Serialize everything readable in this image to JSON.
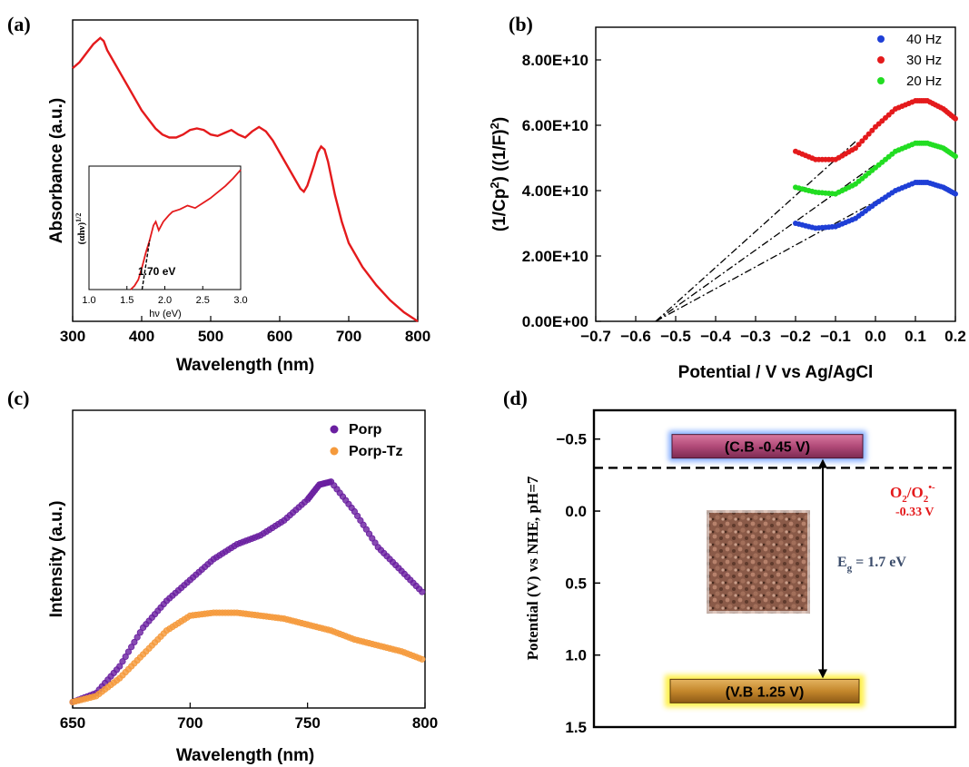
{
  "colors": {
    "red": "#e41a1c",
    "blue": "#1f3fd6",
    "green": "#22dd22",
    "purple": "#6a1fa0",
    "orange": "#f59a3c",
    "navy": "#3b4c6b",
    "cb_fill": "#b14a78",
    "vb_fill": "#c4872c"
  },
  "chart_data": [
    {
      "panel": "(a)",
      "type": "line",
      "xlabel": "Wavelength (nm)",
      "ylabel": "Absorbance (a.u.)",
      "xlim": [
        300,
        800
      ],
      "xticks": [
        "300",
        "400",
        "500",
        "600",
        "700",
        "800"
      ],
      "series": [
        {
          "x": [
            300,
            310,
            320,
            330,
            340,
            345,
            350,
            360,
            370,
            380,
            390,
            400,
            410,
            420,
            430,
            440,
            450,
            460,
            470,
            480,
            490,
            500,
            510,
            520,
            530,
            540,
            550,
            560,
            570,
            580,
            590,
            600,
            610,
            620,
            630,
            635,
            640,
            650,
            655,
            660,
            665,
            670,
            680,
            690,
            700,
            720,
            740,
            760,
            780,
            800
          ],
          "y": [
            0.84,
            0.86,
            0.89,
            0.92,
            0.94,
            0.93,
            0.9,
            0.86,
            0.82,
            0.78,
            0.74,
            0.7,
            0.67,
            0.64,
            0.62,
            0.61,
            0.61,
            0.62,
            0.635,
            0.64,
            0.635,
            0.62,
            0.615,
            0.625,
            0.635,
            0.62,
            0.61,
            0.63,
            0.645,
            0.63,
            0.6,
            0.56,
            0.52,
            0.48,
            0.44,
            0.43,
            0.45,
            0.52,
            0.56,
            0.58,
            0.57,
            0.53,
            0.42,
            0.33,
            0.26,
            0.18,
            0.12,
            0.07,
            0.03,
            0.0
          ]
        }
      ],
      "inset": {
        "xlabel": "hν (eV)",
        "ylabel": "(αhν)^1/2",
        "xlim": [
          1.0,
          3.0
        ],
        "xticks": [
          "1.0",
          "1.5",
          "2.0",
          "2.5",
          "3.0"
        ],
        "annotation": "1.70 eV",
        "series": [
          {
            "x": [
              1.55,
              1.6,
              1.65,
              1.7,
              1.75,
              1.8,
              1.85,
              1.88,
              1.92,
              1.98,
              2.05,
              2.1,
              2.2,
              2.3,
              2.4,
              2.5,
              2.6,
              2.7,
              2.8,
              2.9,
              3.0
            ],
            "y": [
              0.0,
              0.03,
              0.08,
              0.18,
              0.3,
              0.4,
              0.52,
              0.55,
              0.48,
              0.55,
              0.6,
              0.63,
              0.65,
              0.68,
              0.66,
              0.7,
              0.74,
              0.79,
              0.84,
              0.9,
              0.97
            ]
          }
        ],
        "tangent": {
          "x": [
            1.7,
            1.8
          ],
          "y": [
            0.0,
            0.4
          ]
        }
      }
    },
    {
      "panel": "(b)",
      "type": "scatter",
      "xlabel": "Potential / V vs Ag/AgCl",
      "ylabel": "(1/Cp²) ((1/F)²)",
      "xlim": [
        -0.7,
        0.2
      ],
      "ylim": [
        0,
        90000000000.0
      ],
      "xticks": [
        "-0.7",
        "-0.6",
        "-0.5",
        "-0.4",
        "-0.3",
        "-0.2",
        "-0.1",
        "0.0",
        "0.1",
        "0.2"
      ],
      "yticks": [
        "0.00E+00",
        "2.00E+10",
        "4.00E+10",
        "6.00E+10",
        "8.00E+10"
      ],
      "yticks_values": [
        0,
        20000000000.0,
        40000000000.0,
        60000000000.0,
        80000000000.0
      ],
      "legend": [
        "40 Hz",
        "30 Hz",
        "20 Hz"
      ],
      "legend_position": "top-right",
      "series": [
        {
          "name": "40 Hz",
          "color_key": "blue",
          "x": [
            -0.2,
            -0.15,
            -0.1,
            -0.05,
            0.0,
            0.05,
            0.1,
            0.13,
            0.17,
            0.2
          ],
          "y": [
            30000000000.0,
            28500000000.0,
            29000000000.0,
            31500000000.0,
            36000000000.0,
            40000000000.0,
            42500000000.0,
            42500000000.0,
            41000000000.0,
            39000000000.0
          ]
        },
        {
          "name": "30 Hz",
          "color_key": "red",
          "x": [
            -0.2,
            -0.15,
            -0.1,
            -0.05,
            0.0,
            0.05,
            0.1,
            0.13,
            0.17,
            0.2
          ],
          "y": [
            52000000000.0,
            49500000000.0,
            49500000000.0,
            53000000000.0,
            59500000000.0,
            65000000000.0,
            67500000000.0,
            67500000000.0,
            65000000000.0,
            62000000000.0
          ]
        },
        {
          "name": "20 Hz",
          "color_key": "green",
          "x": [
            -0.2,
            -0.15,
            -0.1,
            -0.05,
            0.0,
            0.05,
            0.1,
            0.13,
            0.17,
            0.2
          ],
          "y": [
            41000000000.0,
            39500000000.0,
            39000000000.0,
            42000000000.0,
            47000000000.0,
            52000000000.0,
            54500000000.0,
            54500000000.0,
            53000000000.0,
            50500000000.0
          ]
        }
      ],
      "fit_lines": [
        {
          "x": [
            -0.55,
            0.05
          ],
          "y": [
            0,
            40000000000.0
          ]
        },
        {
          "x": [
            -0.55,
            0.0
          ],
          "y": [
            0,
            48000000000.0
          ]
        },
        {
          "x": [
            -0.55,
            -0.05
          ],
          "y": [
            0,
            55000000000.0
          ]
        }
      ]
    },
    {
      "panel": "(c)",
      "type": "scatter",
      "xlabel": "Wavelength (nm)",
      "ylabel": "Intensity (a.u.)",
      "xlim": [
        650,
        800
      ],
      "xticks": [
        "650",
        "700",
        "750",
        "800"
      ],
      "legend": [
        "Porp",
        "Porp-Tz"
      ],
      "legend_position": "top-right",
      "series": [
        {
          "name": "Porp",
          "color_key": "purple",
          "x": [
            650,
            660,
            670,
            680,
            690,
            700,
            710,
            720,
            730,
            740,
            750,
            755,
            760,
            770,
            780,
            790,
            800
          ],
          "y": [
            0.02,
            0.05,
            0.14,
            0.27,
            0.36,
            0.43,
            0.5,
            0.55,
            0.58,
            0.63,
            0.7,
            0.75,
            0.76,
            0.66,
            0.54,
            0.46,
            0.38
          ]
        },
        {
          "name": "Porp-Tz",
          "color_key": "orange",
          "x": [
            650,
            660,
            670,
            680,
            690,
            700,
            710,
            720,
            730,
            740,
            750,
            760,
            770,
            780,
            790,
            800
          ],
          "y": [
            0.02,
            0.04,
            0.1,
            0.18,
            0.26,
            0.31,
            0.32,
            0.32,
            0.31,
            0.3,
            0.28,
            0.26,
            0.23,
            0.21,
            0.19,
            0.16
          ]
        }
      ]
    },
    {
      "panel": "(d)",
      "type": "diagram",
      "ylabel": "Potential (V) vs NHE, pH=7",
      "ylim": [
        -0.7,
        1.5
      ],
      "yticks": [
        "-0.5",
        "0.0",
        "0.5",
        "1.0",
        "1.5"
      ],
      "yticks_values": [
        -0.5,
        0.0,
        0.5,
        1.0,
        1.5
      ],
      "cb_label": "(C.B -0.45 V)",
      "cb_value": -0.45,
      "vb_label": "(V.B 1.25 V)",
      "vb_value": 1.25,
      "redox_value": -0.3,
      "redox_label_main": "O",
      "redox_label_sub1": "2",
      "redox_label_mid": "/O",
      "redox_label_sub2": "2",
      "redox_label_sup": "•-",
      "redox_potential": "-0.33 V",
      "eg_prefix": "E",
      "eg_sub": "g",
      "eg_suffix": " = 1.7 eV"
    }
  ]
}
